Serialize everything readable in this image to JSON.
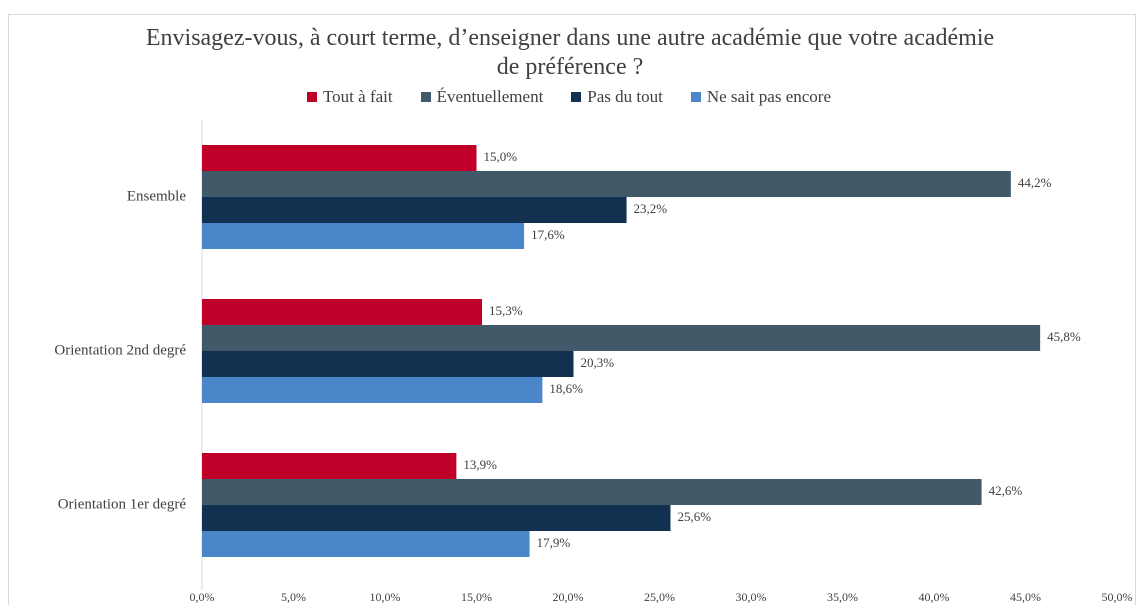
{
  "chart_data": {
    "type": "hbar",
    "title": "Envisagez-vous, à court terme, d’enseigner dans une autre académie que votre académie de préférence ?",
    "categories": [
      "Ensemble",
      "Orientation 2nd degré",
      "Orientation 1er degré"
    ],
    "series": [
      {
        "name": "Tout à fait",
        "color": "#c00028",
        "values": [
          15.0,
          15.3,
          13.9
        ],
        "value_labels": [
          "15,0%",
          "15,3%",
          "13,9%"
        ]
      },
      {
        "name": "Éventuellement",
        "color": "#415a69",
        "values": [
          44.2,
          45.8,
          42.6
        ],
        "value_labels": [
          "44,2%",
          "45,8%",
          "42,6%"
        ]
      },
      {
        "name": "Pas du tout",
        "color": "#12304f",
        "values": [
          23.2,
          20.3,
          25.6
        ],
        "value_labels": [
          "23,2%",
          "20,3%",
          "25,6%"
        ]
      },
      {
        "name": "Ne sait pas encore",
        "color": "#4a86c8",
        "values": [
          17.6,
          18.6,
          17.9
        ],
        "value_labels": [
          "17,6%",
          "18,6%",
          "17,9%"
        ]
      }
    ],
    "xlim": [
      0,
      50
    ],
    "xticks": [
      {
        "value": 0,
        "label": "0,0%"
      },
      {
        "value": 5,
        "label": "5,0%"
      },
      {
        "value": 10,
        "label": "10,0%"
      },
      {
        "value": 15,
        "label": "15,0%"
      },
      {
        "value": 20,
        "label": "20,0%"
      },
      {
        "value": 25,
        "label": "25,0%"
      },
      {
        "value": 30,
        "label": "30,0%"
      },
      {
        "value": 35,
        "label": "35,0%"
      },
      {
        "value": 40,
        "label": "40,0%"
      },
      {
        "value": 45,
        "label": "45,0%"
      },
      {
        "value": 50,
        "label": "50,0%"
      }
    ],
    "legend": "top"
  }
}
